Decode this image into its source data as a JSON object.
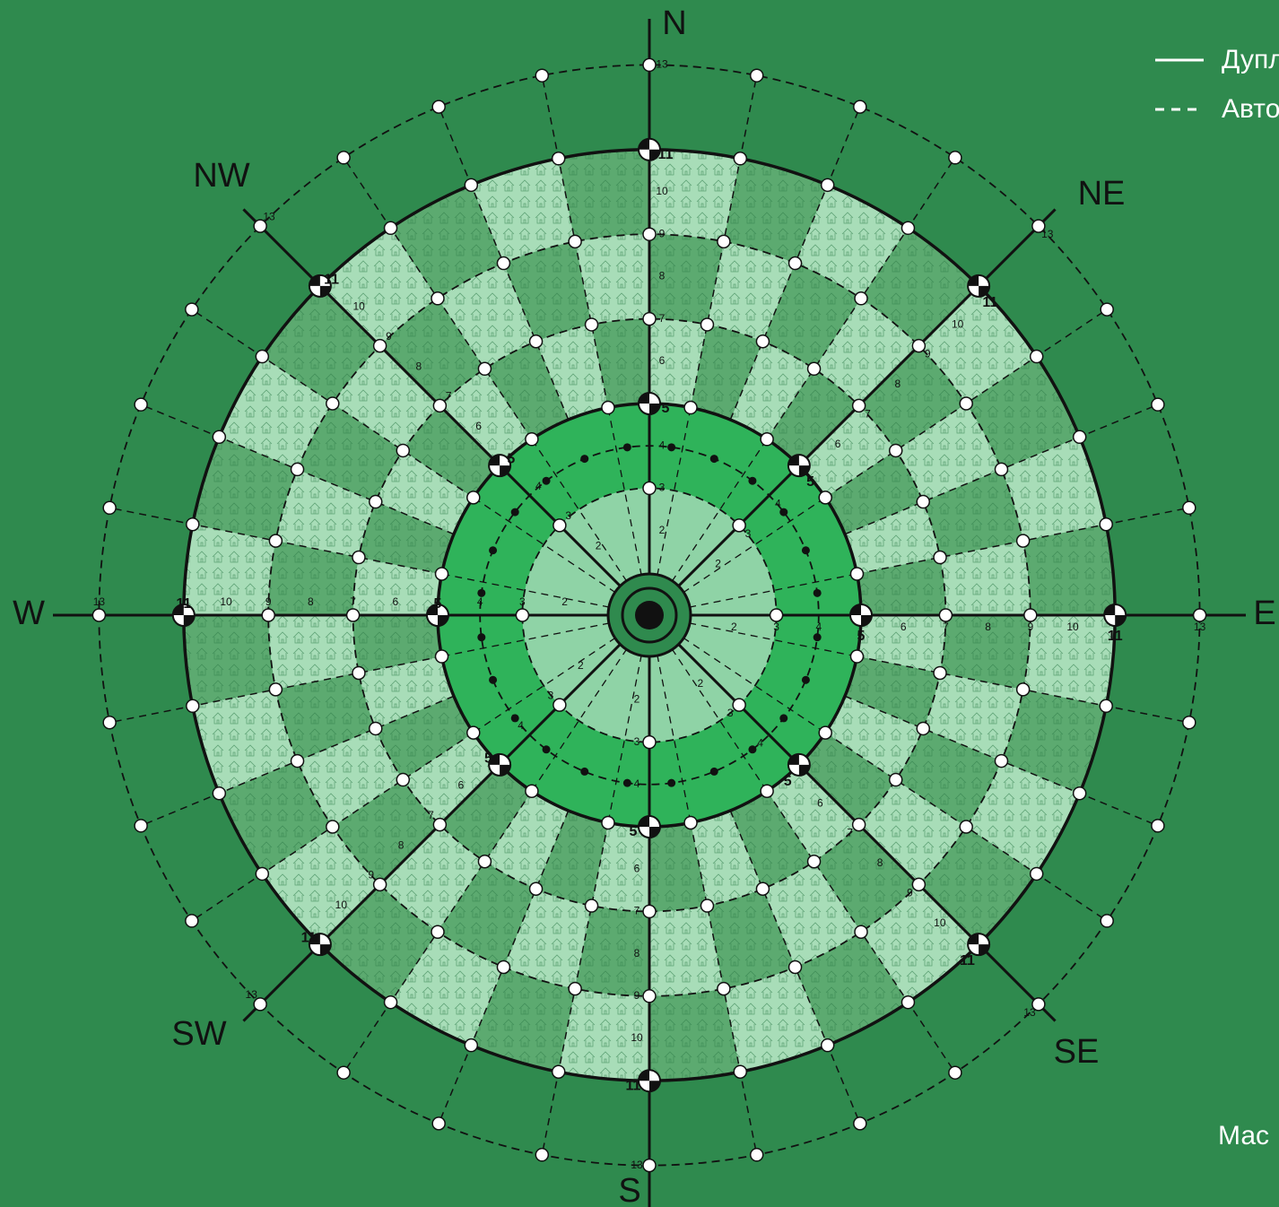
{
  "compass": [
    "N",
    "NE",
    "E",
    "SE",
    "S",
    "SW",
    "W",
    "NW"
  ],
  "ring_numbers": [
    2,
    3,
    4,
    6,
    7,
    8,
    9,
    10,
    13
  ],
  "major_ring_numbers": [
    5,
    11
  ],
  "legend": {
    "items": [
      "Дупл",
      "Авто"
    ]
  },
  "scale_label": "Мас"
}
